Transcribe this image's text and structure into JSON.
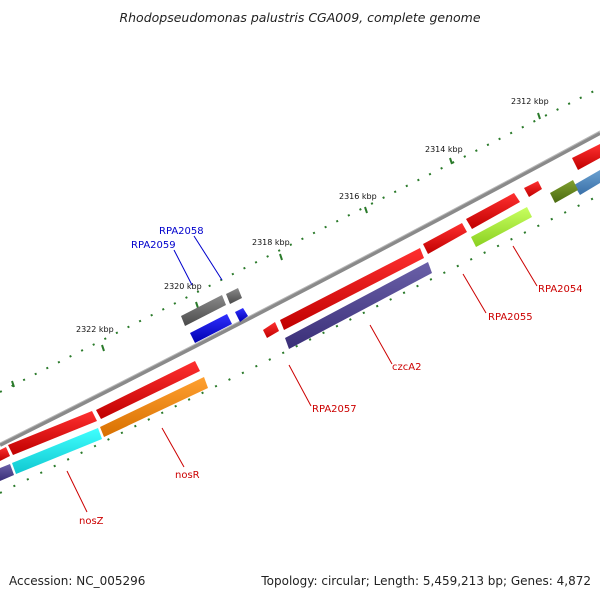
{
  "title": "Rhodopseudomonas palustris CGA009, complete genome",
  "footer": {
    "accession": "Accession: NC_005296",
    "topology": "Topology: circular; Length: 5,459,213 bp; Genes: 4,872"
  },
  "scale_labels": [
    "2312 kbp",
    "2314 kbp",
    "2316 kbp",
    "2318 kbp",
    "2320 kbp",
    "2322 kbp"
  ],
  "gene_labels": [
    {
      "id": "RPA2058",
      "text": "RPA2058",
      "color": "#0000cc"
    },
    {
      "id": "RPA2059",
      "text": "RPA2059",
      "color": "#0000cc"
    },
    {
      "id": "RPA2054",
      "text": "RPA2054",
      "color": "#cc0000"
    },
    {
      "id": "RPA2055",
      "text": "RPA2055",
      "color": "#cc0000"
    },
    {
      "id": "czcA2",
      "text": "czcA2",
      "color": "#cc0000"
    },
    {
      "id": "RPA2057",
      "text": "RPA2057",
      "color": "#cc0000"
    },
    {
      "id": "nosR",
      "text": "nosR",
      "color": "#cc0000"
    },
    {
      "id": "nosZ",
      "text": "nosZ",
      "color": "#cc0000"
    }
  ],
  "colors": {
    "backbone": "#8a8a8a",
    "forward_gene": "#e00000",
    "reverse_gene": "#4a3f8c",
    "scale_ticks": "#2a7a2a"
  }
}
